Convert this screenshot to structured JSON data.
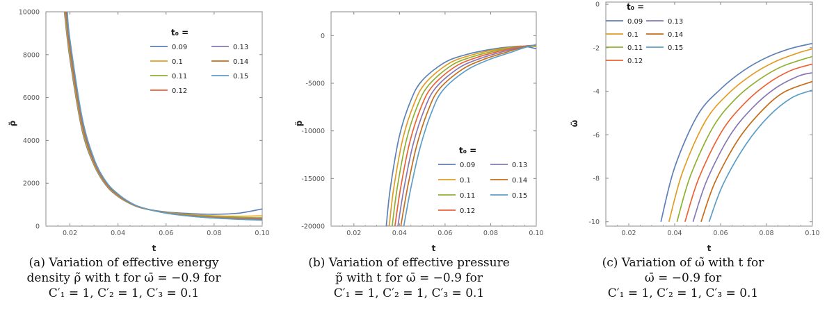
{
  "chart_data": [
    {
      "type": "line",
      "xlabel": "t",
      "ylabel": "ρ̃",
      "xlim": [
        0.01,
        0.1
      ],
      "ylim": [
        0,
        10000
      ],
      "xticks": [
        0.02,
        0.04,
        0.06,
        0.08,
        0.1
      ],
      "xtick_labels": [
        "0.02",
        "0.04",
        "0.06",
        "0.08",
        "0.10"
      ],
      "yticks": [
        0,
        2000,
        4000,
        6000,
        8000,
        10000
      ],
      "ytick_labels": [
        "0",
        "2000",
        "4000",
        "6000",
        "8000",
        "10000"
      ],
      "legend_title": "t₀ =",
      "legend_position": "middle-right",
      "series": [
        {
          "name": "0.09",
          "color": "#5E81B5",
          "points": [
            [
              0.0177,
              10000
            ],
            [
              0.02,
              7800
            ],
            [
              0.025,
              4500
            ],
            [
              0.03,
              2850
            ],
            [
              0.035,
              1900
            ],
            [
              0.04,
              1380
            ],
            [
              0.045,
              1050
            ],
            [
              0.05,
              840
            ],
            [
              0.06,
              660
            ],
            [
              0.07,
              585
            ],
            [
              0.08,
              555
            ],
            [
              0.09,
              600
            ],
            [
              0.1,
              800
            ]
          ]
        },
        {
          "name": "0.1",
          "color": "#E19C24",
          "points": [
            [
              0.0179,
              10000
            ],
            [
              0.02,
              7950
            ],
            [
              0.025,
              4600
            ],
            [
              0.03,
              2900
            ],
            [
              0.035,
              1930
            ],
            [
              0.04,
              1400
            ],
            [
              0.045,
              1060
            ],
            [
              0.05,
              840
            ],
            [
              0.06,
              640
            ],
            [
              0.07,
              540
            ],
            [
              0.08,
              480
            ],
            [
              0.09,
              460
            ],
            [
              0.1,
              480
            ]
          ]
        },
        {
          "name": "0.11",
          "color": "#8FB032",
          "points": [
            [
              0.0181,
              10000
            ],
            [
              0.02,
              8100
            ],
            [
              0.025,
              4700
            ],
            [
              0.03,
              2950
            ],
            [
              0.035,
              1960
            ],
            [
              0.04,
              1420
            ],
            [
              0.045,
              1070
            ],
            [
              0.05,
              845
            ],
            [
              0.06,
              630
            ],
            [
              0.07,
              510
            ],
            [
              0.08,
              440
            ],
            [
              0.09,
              400
            ],
            [
              0.1,
              390
            ]
          ]
        },
        {
          "name": "0.12",
          "color": "#EB6235",
          "points": [
            [
              0.0183,
              10000
            ],
            [
              0.02,
              8250
            ],
            [
              0.025,
              4800
            ],
            [
              0.03,
              3000
            ],
            [
              0.035,
              1990
            ],
            [
              0.04,
              1440
            ],
            [
              0.045,
              1080
            ],
            [
              0.05,
              850
            ],
            [
              0.06,
              620
            ],
            [
              0.07,
              490
            ],
            [
              0.08,
              410
            ],
            [
              0.09,
              365
            ],
            [
              0.1,
              345
            ]
          ]
        },
        {
          "name": "0.13",
          "color": "#8778B3",
          "points": [
            [
              0.0185,
              10000
            ],
            [
              0.02,
              8400
            ],
            [
              0.025,
              4900
            ],
            [
              0.03,
              3050
            ],
            [
              0.035,
              2020
            ],
            [
              0.04,
              1460
            ],
            [
              0.045,
              1090
            ],
            [
              0.05,
              855
            ],
            [
              0.06,
              615
            ],
            [
              0.07,
              480
            ],
            [
              0.08,
              395
            ],
            [
              0.09,
              345
            ],
            [
              0.1,
              315
            ]
          ]
        },
        {
          "name": "0.14",
          "color": "#C56E1A",
          "points": [
            [
              0.0187,
              10000
            ],
            [
              0.02,
              8550
            ],
            [
              0.025,
              5000
            ],
            [
              0.03,
              3100
            ],
            [
              0.035,
              2050
            ],
            [
              0.04,
              1480
            ],
            [
              0.045,
              1100
            ],
            [
              0.05,
              860
            ],
            [
              0.06,
              610
            ],
            [
              0.07,
              470
            ],
            [
              0.08,
              385
            ],
            [
              0.09,
              330
            ],
            [
              0.1,
              295
            ]
          ]
        },
        {
          "name": "0.15",
          "color": "#5D9EC7",
          "points": [
            [
              0.0189,
              10000
            ],
            [
              0.02,
              8700
            ],
            [
              0.025,
              5100
            ],
            [
              0.03,
              3150
            ],
            [
              0.035,
              2080
            ],
            [
              0.04,
              1500
            ],
            [
              0.045,
              1110
            ],
            [
              0.05,
              865
            ],
            [
              0.06,
              605
            ],
            [
              0.07,
              465
            ],
            [
              0.08,
              375
            ],
            [
              0.09,
              320
            ],
            [
              0.1,
              280
            ]
          ]
        }
      ]
    },
    {
      "type": "line",
      "xlabel": "t",
      "ylabel": "p̃",
      "xlim": [
        0.01,
        0.1
      ],
      "ylim": [
        -20000,
        2500
      ],
      "xticks": [
        0.02,
        0.04,
        0.06,
        0.08,
        0.1
      ],
      "xtick_labels": [
        "0.02",
        "0.04",
        "0.06",
        "0.08",
        "0.10"
      ],
      "yticks": [
        -20000,
        -15000,
        -10000,
        -5000,
        0
      ],
      "ytick_labels": [
        "-20000",
        "-15000",
        "-10000",
        "-5000",
        "0"
      ],
      "legend_title": "t₀ =",
      "legend_position": "bottom-right",
      "series": [
        {
          "name": "0.09",
          "color": "#5E81B5",
          "points": [
            [
              0.0342,
              -20000
            ],
            [
              0.036,
              -16000
            ],
            [
              0.04,
              -10500
            ],
            [
              0.045,
              -6800
            ],
            [
              0.05,
              -4700
            ],
            [
              0.06,
              -2800
            ],
            [
              0.07,
              -1950
            ],
            [
              0.08,
              -1450
            ],
            [
              0.09,
              -1150
            ],
            [
              0.095,
              -1130
            ],
            [
              0.1,
              -1380
            ]
          ]
        },
        {
          "name": "0.1",
          "color": "#E19C24",
          "points": [
            [
              0.0355,
              -20000
            ],
            [
              0.0375,
              -16000
            ],
            [
              0.0415,
              -10800
            ],
            [
              0.0465,
              -7100
            ],
            [
              0.0515,
              -4950
            ],
            [
              0.0615,
              -2950
            ],
            [
              0.0715,
              -2050
            ],
            [
              0.0815,
              -1500
            ],
            [
              0.09,
              -1200
            ],
            [
              0.095,
              -1100
            ],
            [
              0.1,
              -1150
            ]
          ]
        },
        {
          "name": "0.11",
          "color": "#8FB032",
          "points": [
            [
              0.0368,
              -20000
            ],
            [
              0.039,
              -16000
            ],
            [
              0.043,
              -11000
            ],
            [
              0.048,
              -7300
            ],
            [
              0.053,
              -5150
            ],
            [
              0.063,
              -3100
            ],
            [
              0.073,
              -2150
            ],
            [
              0.083,
              -1550
            ],
            [
              0.09,
              -1250
            ],
            [
              0.095,
              -1100
            ],
            [
              0.1,
              -1050
            ]
          ]
        },
        {
          "name": "0.12",
          "color": "#EB6235",
          "points": [
            [
              0.038,
              -20000
            ],
            [
              0.0405,
              -16000
            ],
            [
              0.0445,
              -11200
            ],
            [
              0.0495,
              -7500
            ],
            [
              0.0545,
              -5300
            ],
            [
              0.0645,
              -3250
            ],
            [
              0.0745,
              -2250
            ],
            [
              0.0845,
              -1600
            ],
            [
              0.09,
              -1300
            ],
            [
              0.095,
              -1100
            ],
            [
              0.1,
              -1000
            ]
          ]
        },
        {
          "name": "0.13",
          "color": "#8778B3",
          "points": [
            [
              0.0393,
              -20000
            ],
            [
              0.042,
              -16000
            ],
            [
              0.046,
              -11400
            ],
            [
              0.051,
              -7700
            ],
            [
              0.056,
              -5450
            ],
            [
              0.066,
              -3400
            ],
            [
              0.076,
              -2350
            ],
            [
              0.086,
              -1650
            ],
            [
              0.09,
              -1400
            ],
            [
              0.095,
              -1150
            ],
            [
              0.1,
              -980
            ]
          ]
        },
        {
          "name": "0.14",
          "color": "#C56E1A",
          "points": [
            [
              0.0406,
              -20000
            ],
            [
              0.0435,
              -16000
            ],
            [
              0.0475,
              -11600
            ],
            [
              0.0525,
              -7900
            ],
            [
              0.0575,
              -5600
            ],
            [
              0.0675,
              -3550
            ],
            [
              0.0775,
              -2450
            ],
            [
              0.0875,
              -1700
            ],
            [
              0.09,
              -1500
            ],
            [
              0.095,
              -1200
            ],
            [
              0.1,
              -960
            ]
          ]
        },
        {
          "name": "0.15",
          "color": "#5D9EC7",
          "points": [
            [
              0.0419,
              -20000
            ],
            [
              0.045,
              -16000
            ],
            [
              0.049,
              -11800
            ],
            [
              0.054,
              -8100
            ],
            [
              0.059,
              -5750
            ],
            [
              0.069,
              -3700
            ],
            [
              0.079,
              -2550
            ],
            [
              0.089,
              -1750
            ],
            [
              0.093,
              -1400
            ],
            [
              0.097,
              -1120
            ],
            [
              0.1,
              -950
            ]
          ]
        }
      ]
    },
    {
      "type": "line",
      "xlabel": "t",
      "ylabel": "ω̃",
      "xlim": [
        0.01,
        0.1
      ],
      "ylim": [
        -10.2,
        0.1
      ],
      "xticks": [
        0.02,
        0.04,
        0.06,
        0.08,
        0.1
      ],
      "xtick_labels": [
        "0.02",
        "0.04",
        "0.06",
        "0.08",
        "0.10"
      ],
      "yticks": [
        -10,
        -8,
        -6,
        -4,
        -2,
        0
      ],
      "ytick_labels": [
        "-10",
        "-8",
        "-6",
        "-4",
        "-2",
        "0"
      ],
      "legend_title": "t₀ =",
      "legend_position": "top-left",
      "series": [
        {
          "name": "0.09",
          "color": "#5E81B5",
          "points": [
            [
              0.034,
              -10
            ],
            [
              0.04,
              -7.5
            ],
            [
              0.05,
              -5.1
            ],
            [
              0.06,
              -3.9
            ],
            [
              0.07,
              -3.05
            ],
            [
              0.08,
              -2.45
            ],
            [
              0.09,
              -2.05
            ],
            [
              0.1,
              -1.8
            ]
          ]
        },
        {
          "name": "0.1",
          "color": "#E19C24",
          "points": [
            [
              0.0375,
              -10
            ],
            [
              0.0435,
              -7.7
            ],
            [
              0.0535,
              -5.35
            ],
            [
              0.0635,
              -4.1
            ],
            [
              0.0735,
              -3.25
            ],
            [
              0.0835,
              -2.65
            ],
            [
              0.0935,
              -2.25
            ],
            [
              0.1,
              -2.05
            ]
          ]
        },
        {
          "name": "0.11",
          "color": "#8FB032",
          "points": [
            [
              0.041,
              -10
            ],
            [
              0.047,
              -7.85
            ],
            [
              0.057,
              -5.6
            ],
            [
              0.067,
              -4.3
            ],
            [
              0.077,
              -3.45
            ],
            [
              0.087,
              -2.85
            ],
            [
              0.1,
              -2.4
            ]
          ]
        },
        {
          "name": "0.12",
          "color": "#EB6235",
          "points": [
            [
              0.0445,
              -10
            ],
            [
              0.0505,
              -8.0
            ],
            [
              0.0605,
              -5.85
            ],
            [
              0.0705,
              -4.55
            ],
            [
              0.0805,
              -3.65
            ],
            [
              0.0905,
              -3.05
            ],
            [
              0.1,
              -2.75
            ]
          ]
        },
        {
          "name": "0.13",
          "color": "#8778B3",
          "points": [
            [
              0.048,
              -10
            ],
            [
              0.054,
              -8.1
            ],
            [
              0.064,
              -6.05
            ],
            [
              0.074,
              -4.75
            ],
            [
              0.084,
              -3.85
            ],
            [
              0.094,
              -3.3
            ],
            [
              0.1,
              -3.15
            ]
          ]
        },
        {
          "name": "0.14",
          "color": "#C56E1A",
          "points": [
            [
              0.0515,
              -10
            ],
            [
              0.0575,
              -8.2
            ],
            [
              0.0675,
              -6.25
            ],
            [
              0.0775,
              -4.95
            ],
            [
              0.0875,
              -4.05
            ],
            [
              0.1,
              -3.55
            ]
          ]
        },
        {
          "name": "0.15",
          "color": "#5D9EC7",
          "points": [
            [
              0.055,
              -10
            ],
            [
              0.061,
              -8.3
            ],
            [
              0.071,
              -6.45
            ],
            [
              0.081,
              -5.15
            ],
            [
              0.091,
              -4.3
            ],
            [
              0.1,
              -3.95
            ]
          ]
        }
      ]
    }
  ],
  "captions": [
    {
      "lines": [
        "(a) Variation of effective energy",
        "density ρ̃ with t for ω̄ = −0.9 for",
        "C′₁ = 1,  C′₂ = 1,  C′₃ = 0.1"
      ]
    },
    {
      "lines": [
        "(b) Variation of effective pressure",
        "p̃ with t for ω̄ = −0.9 for",
        "C′₁ = 1,  C′₂ = 1,  C′₃ = 0.1"
      ]
    },
    {
      "lines": [
        "(c) Variation of ω̃ with t for",
        "ω̄ = −0.9 for",
        "C′₁ = 1,  C′₂ = 1,  C′₃ = 0.1"
      ]
    }
  ]
}
